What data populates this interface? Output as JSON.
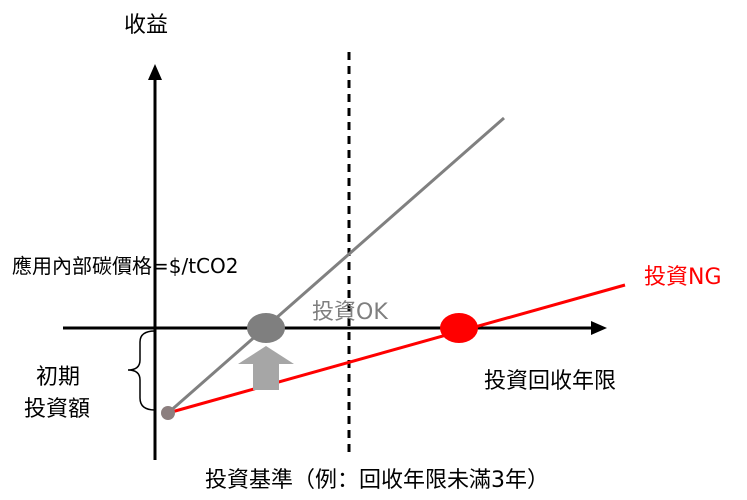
{
  "labels": {
    "y_axis": "收益",
    "x_axis": "投資回收年限",
    "internal_carbon_price": "應用內部碳價格=$/tCO2",
    "invest_ng": "投資NG",
    "invest_ok": "投資OK",
    "initial_investment_line1": "初期",
    "initial_investment_line2": "投資額",
    "criterion": "投資基準（例：回收年限未滿3年）"
  },
  "colors": {
    "axis": "#000000",
    "gray_line": "#808080",
    "red_line": "#ff0000",
    "gray_marker": "#7f7f7f",
    "red_marker": "#ff0000",
    "arrow": "#a6a6a6",
    "start_point": "#8c7f7f",
    "ok_label": "#7f7f7f",
    "ng_label": "#ff0000"
  },
  "icons": {
    "up_arrow": "up-arrow-icon",
    "brace": "left-brace-icon"
  }
}
